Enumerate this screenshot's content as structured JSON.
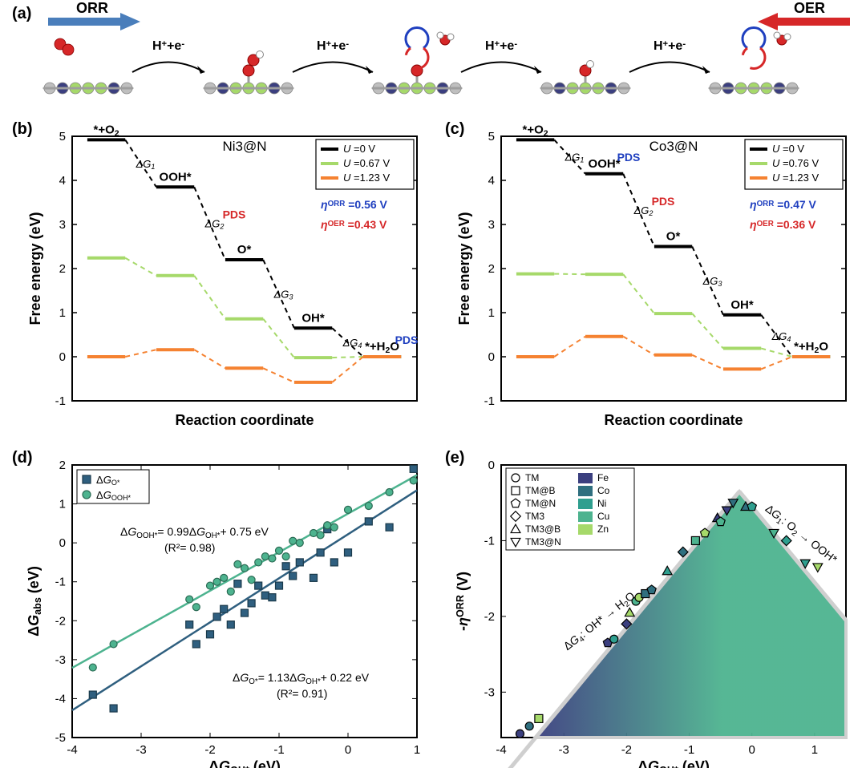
{
  "panel_labels": {
    "a": "(a)",
    "b": "(b)",
    "c": "(c)",
    "d": "(d)",
    "e": "(e)"
  },
  "panel_a": {
    "orr_label": "ORR",
    "oer_label": "OER",
    "step_text": "H⁺+e⁻",
    "orr_arrow_color": "#4a7ebb",
    "oer_arrow_color": "#d62728",
    "atom_colors": {
      "C": "#bfbfbf",
      "N": "#3b3f7f",
      "metal": "#a6d96a",
      "O": "#d62728",
      "H": "#ffffff",
      "bond": "#9e9e9e"
    }
  },
  "panel_b": {
    "title": "Ni3@N",
    "ylabel": "Free energy (eV)",
    "xlabel": "Reaction coordinate",
    "ylim": [
      -1,
      5
    ],
    "ytick_step": 1,
    "series": [
      {
        "label": "U =0 V",
        "color": "#000000",
        "values": [
          4.92,
          3.85,
          2.2,
          0.65,
          0.0
        ]
      },
      {
        "label": "U =0.67 V",
        "color": "#a6d96a",
        "values": [
          2.24,
          1.84,
          0.86,
          -0.02,
          0.0
        ]
      },
      {
        "label": "U =1.23 V",
        "color": "#f58231",
        "values": [
          0.0,
          0.16,
          -0.26,
          -0.58,
          0.0
        ]
      }
    ],
    "step_labels": [
      "*+O₂",
      "OOH*",
      "O*",
      "OH*",
      "*+H₂O"
    ],
    "dG_labels": [
      "ΔG₁",
      "ΔG₂",
      "ΔG₃",
      "ΔG₄"
    ],
    "pds_orr_step": 4,
    "pds_oer_step": 2,
    "eta_orr": "ηᴼᴿᴿ =0.56 V",
    "eta_oer": "ηᴼᴱᴿ =0.43 V",
    "eta_orr_color": "#1f3fbf",
    "eta_oer_color": "#d62728",
    "pds_color": "#d62728",
    "pds_blue_color": "#1f3fbf",
    "background_color": "#ffffff",
    "axis_color": "#000000"
  },
  "panel_c": {
    "title": "Co3@N",
    "ylabel": "Free energy (eV)",
    "xlabel": "Reaction coordinate",
    "ylim": [
      -1,
      5
    ],
    "ytick_step": 1,
    "series": [
      {
        "label": "U =0 V",
        "color": "#000000",
        "values": [
          4.92,
          4.15,
          2.5,
          0.95,
          0.0
        ]
      },
      {
        "label": "U =0.76 V",
        "color": "#a6d96a",
        "values": [
          1.88,
          1.87,
          0.98,
          0.19,
          0.0
        ]
      },
      {
        "label": "U =1.23 V",
        "color": "#f58231",
        "values": [
          0.0,
          0.46,
          0.04,
          -0.28,
          0.0
        ]
      }
    ],
    "step_labels": [
      "*+O₂",
      "OOH*",
      "O*",
      "OH*",
      "*+H₂O"
    ],
    "dG_labels": [
      "ΔG₁",
      "ΔG₂",
      "ΔG₃",
      "ΔG₄"
    ],
    "pds_orr_step": 1,
    "pds_oer_step": 2,
    "eta_orr": "ηᴼᴿᴿ =0.47 V",
    "eta_oer": "ηᴼᴱᴿ =0.36 V",
    "eta_orr_color": "#1f3fbf",
    "eta_oer_color": "#d62728"
  },
  "panel_d": {
    "xlabel": "ΔGₒₕ* (eV)",
    "xlabel_rich": "ΔG_{OH*} (eV)",
    "ylabel": "ΔGₐᵇₛ (eV)",
    "ylabel_rich": "ΔG_{abs} (eV)",
    "xlim": [
      -4,
      1
    ],
    "ylim": [
      -5,
      2
    ],
    "xtick_step": 1,
    "ytick_step": 1,
    "legend": [
      {
        "label": "ΔGₒ*",
        "mark": "square",
        "color": "#2f5f7f"
      },
      {
        "label": "ΔGₒₒₕ*",
        "mark": "circle",
        "color": "#4db38f"
      }
    ],
    "fit_lines": [
      {
        "label": "ΔG_{OOH*}= 0.99ΔG_{OH*}+ 0.75 eV",
        "r2": "(R²= 0.98)",
        "slope": 0.99,
        "intercept": 0.75,
        "color": "#4db38f"
      },
      {
        "label": "ΔG_{O*}= 1.13ΔG_{OH*}+ 0.22 eV",
        "r2": "(R²= 0.91)",
        "slope": 1.13,
        "intercept": 0.22,
        "color": "#2f5f7f"
      }
    ],
    "points_O": [
      [
        -3.7,
        -3.9
      ],
      [
        -3.4,
        -4.25
      ],
      [
        -2.3,
        -2.1
      ],
      [
        -2.2,
        -2.6
      ],
      [
        -2.0,
        -2.35
      ],
      [
        -1.9,
        -1.9
      ],
      [
        -1.8,
        -1.7
      ],
      [
        -1.7,
        -2.1
      ],
      [
        -1.6,
        -1.05
      ],
      [
        -1.5,
        -1.8
      ],
      [
        -1.4,
        -1.55
      ],
      [
        -1.3,
        -1.1
      ],
      [
        -1.2,
        -1.35
      ],
      [
        -1.1,
        -1.4
      ],
      [
        -1.0,
        -1.1
      ],
      [
        -0.9,
        -0.6
      ],
      [
        -0.8,
        -0.85
      ],
      [
        -0.7,
        -0.5
      ],
      [
        -0.5,
        -0.9
      ],
      [
        -0.4,
        -0.25
      ],
      [
        -0.3,
        0.35
      ],
      [
        -0.2,
        -0.5
      ],
      [
        0.0,
        -0.25
      ],
      [
        0.3,
        0.55
      ],
      [
        0.6,
        0.4
      ],
      [
        0.95,
        1.9
      ]
    ],
    "points_OOH": [
      [
        -3.7,
        -3.2
      ],
      [
        -3.4,
        -2.6
      ],
      [
        -2.3,
        -1.45
      ],
      [
        -2.2,
        -1.65
      ],
      [
        -2.0,
        -1.1
      ],
      [
        -1.9,
        -1.0
      ],
      [
        -1.8,
        -0.9
      ],
      [
        -1.7,
        -1.25
      ],
      [
        -1.6,
        -0.55
      ],
      [
        -1.5,
        -0.65
      ],
      [
        -1.4,
        -0.95
      ],
      [
        -1.3,
        -0.5
      ],
      [
        -1.2,
        -0.35
      ],
      [
        -1.1,
        -0.4
      ],
      [
        -1.0,
        -0.2
      ],
      [
        -0.9,
        -0.35
      ],
      [
        -0.8,
        0.05
      ],
      [
        -0.7,
        0.0
      ],
      [
        -0.5,
        0.25
      ],
      [
        -0.4,
        0.2
      ],
      [
        -0.3,
        0.45
      ],
      [
        -0.2,
        0.4
      ],
      [
        0.0,
        0.85
      ],
      [
        0.3,
        0.95
      ],
      [
        0.6,
        1.3
      ],
      [
        0.95,
        1.6
      ]
    ],
    "marker_size": 9,
    "line_width": 2.5
  },
  "panel_e": {
    "xlabel": "ΔG_{OH*} (eV)",
    "ylabel": "-ηᴼᴿᴿ (V)",
    "xlim": [
      -4,
      1.5
    ],
    "ylim": [
      -3.6,
      0
    ],
    "xtick_step": 1,
    "ytick_step": 1,
    "apex": [
      -0.2,
      -0.35
    ],
    "volcano_color_left": "#3b3f7f",
    "volcano_color_right": "#4db38f",
    "volcano_stroke": "#cfcfcf",
    "ann_left": "ΔG₄: OH* → H₂O",
    "ann_right": "ΔG₁: O₂ → OOH*",
    "legend_shapes": [
      {
        "label": "TM",
        "mark": "circle"
      },
      {
        "label": "TM@B",
        "mark": "square"
      },
      {
        "label": "TM@N",
        "mark": "pentagon"
      },
      {
        "label": "TM3",
        "mark": "diamond"
      },
      {
        "label": "TM3@B",
        "mark": "triangleUp"
      },
      {
        "label": "TM3@N",
        "mark": "triangleDown"
      }
    ],
    "legend_colors": [
      {
        "label": "Fe",
        "color": "#3b3f7f"
      },
      {
        "label": "Co",
        "color": "#2f6f7f"
      },
      {
        "label": "Ni",
        "color": "#2f9f8f"
      },
      {
        "label": "Cu",
        "color": "#4db38f"
      },
      {
        "label": "Zn",
        "color": "#a6d96a"
      }
    ],
    "points": [
      {
        "x": -3.7,
        "y": -3.55,
        "mark": "circle",
        "color": "#3b3f7f"
      },
      {
        "x": -3.55,
        "y": -3.45,
        "mark": "circle",
        "color": "#2f6f7f"
      },
      {
        "x": -3.4,
        "y": -3.35,
        "mark": "square",
        "color": "#a6d96a"
      },
      {
        "x": -2.3,
        "y": -2.35,
        "mark": "pentagon",
        "color": "#3b3f7f"
      },
      {
        "x": -2.2,
        "y": -2.3,
        "mark": "circle",
        "color": "#2f9f8f"
      },
      {
        "x": -2.0,
        "y": -2.1,
        "mark": "diamond",
        "color": "#3b3f7f"
      },
      {
        "x": -1.95,
        "y": -1.95,
        "mark": "triangleUp",
        "color": "#a6d96a"
      },
      {
        "x": -1.85,
        "y": -1.8,
        "mark": "circle",
        "color": "#4db38f"
      },
      {
        "x": -1.8,
        "y": -1.75,
        "mark": "circle",
        "color": "#a6d96a"
      },
      {
        "x": -1.7,
        "y": -1.7,
        "mark": "square",
        "color": "#2f6f7f"
      },
      {
        "x": -1.6,
        "y": -1.65,
        "mark": "pentagon",
        "color": "#2f6f7f"
      },
      {
        "x": -1.35,
        "y": -1.4,
        "mark": "triangleUp",
        "color": "#2f9f8f"
      },
      {
        "x": -1.1,
        "y": -1.15,
        "mark": "diamond",
        "color": "#2f6f7f"
      },
      {
        "x": -0.9,
        "y": -1.0,
        "mark": "square",
        "color": "#4db38f"
      },
      {
        "x": -0.75,
        "y": -0.9,
        "mark": "pentagon",
        "color": "#a6d96a"
      },
      {
        "x": -0.55,
        "y": -0.7,
        "mark": "triangleUp",
        "color": "#3b3f7f"
      },
      {
        "x": -0.5,
        "y": -0.75,
        "mark": "pentagon",
        "color": "#4db38f"
      },
      {
        "x": -0.4,
        "y": -0.6,
        "mark": "triangleDown",
        "color": "#3b3f7f"
      },
      {
        "x": -0.3,
        "y": -0.5,
        "mark": "triangleDown",
        "color": "#2f6f7f"
      },
      {
        "x": -0.1,
        "y": -0.55,
        "mark": "triangleUp",
        "color": "#2f6f7f"
      },
      {
        "x": 0.0,
        "y": -0.55,
        "mark": "pentagon",
        "color": "#2f9f8f"
      },
      {
        "x": 0.35,
        "y": -0.9,
        "mark": "triangleDown",
        "color": "#4db38f"
      },
      {
        "x": 0.55,
        "y": -1.0,
        "mark": "diamond",
        "color": "#2f9f8f"
      },
      {
        "x": 0.85,
        "y": -1.3,
        "mark": "triangleDown",
        "color": "#2f9f8f"
      },
      {
        "x": 1.05,
        "y": -1.35,
        "mark": "triangleDown",
        "color": "#a6d96a"
      }
    ],
    "marker_size": 10
  }
}
